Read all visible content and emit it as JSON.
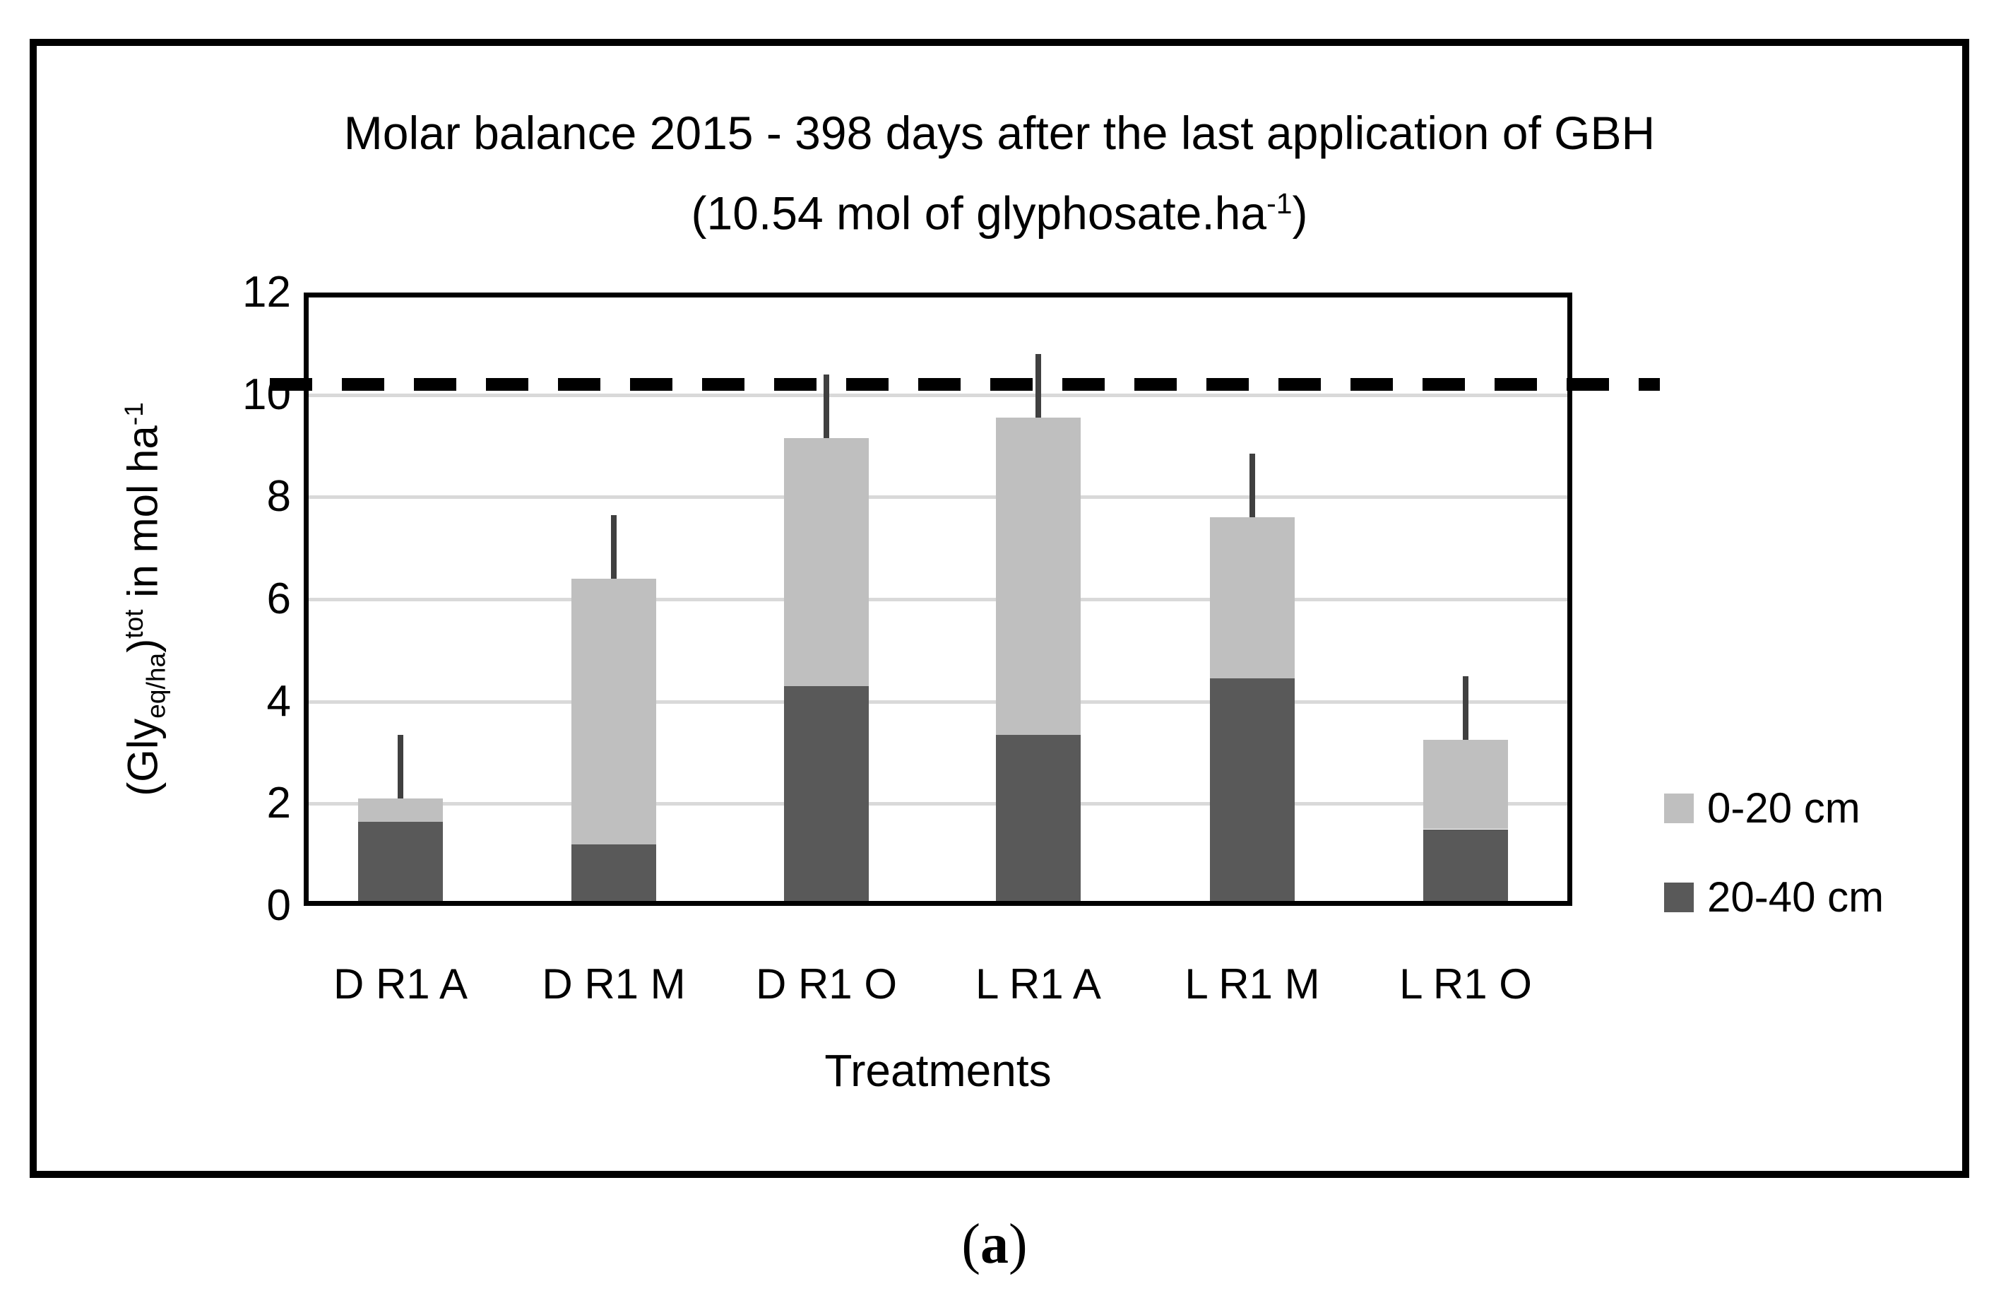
{
  "figure": {
    "caption_prefix": "(",
    "caption_letter": "a",
    "caption_suffix": ")"
  },
  "chart_data": {
    "type": "bar",
    "stacked": true,
    "title_line1": "Molar balance 2015 - 398 days after the last application of GBH",
    "title_line2": {
      "prefix": "(10.54 mol of glyphosate.ha",
      "sup": "-1",
      "suffix": ")"
    },
    "xlabel": "Treatments",
    "ylabel_segments": [
      {
        "t": "(Gly"
      },
      {
        "t": "eq/ha",
        "sub": true
      },
      {
        "t": ")"
      },
      {
        "t": "tot",
        "sup": true
      },
      {
        "t": "  in mol ha"
      },
      {
        "t": "-1",
        "sup": true
      }
    ],
    "categories": [
      "D R1 A",
      "D R1 M",
      "D R1 O",
      "L R1 A",
      "L R1 M",
      "L R1 O"
    ],
    "series": [
      {
        "name": "20-40 cm",
        "color": "#595959",
        "values": [
          1.65,
          1.2,
          4.3,
          3.35,
          4.45,
          1.5
        ]
      },
      {
        "name": "0-20 cm",
        "color": "#bfbfbf",
        "values": [
          0.45,
          5.2,
          4.85,
          6.2,
          3.15,
          1.75
        ]
      }
    ],
    "stack_totals": [
      2.1,
      6.4,
      9.15,
      9.55,
      7.6,
      3.25
    ],
    "error_bar_tops": [
      3.35,
      7.65,
      10.4,
      10.8,
      8.85,
      4.5
    ],
    "error_bar_color": "#404040",
    "reference_line": {
      "value": 10.2,
      "style": "dashed",
      "color": "#000000"
    },
    "ylim": [
      0,
      12
    ],
    "yticks": [
      0,
      2,
      4,
      6,
      8,
      10,
      12
    ],
    "gridlines": {
      "values": [
        2,
        4,
        6,
        8,
        10
      ],
      "color": "#d9d9d9"
    },
    "legend": {
      "position": "right",
      "items": [
        {
          "label": "0-20 cm",
          "color": "#bfbfbf"
        },
        {
          "label": "20-40 cm",
          "color": "#595959"
        }
      ]
    }
  }
}
